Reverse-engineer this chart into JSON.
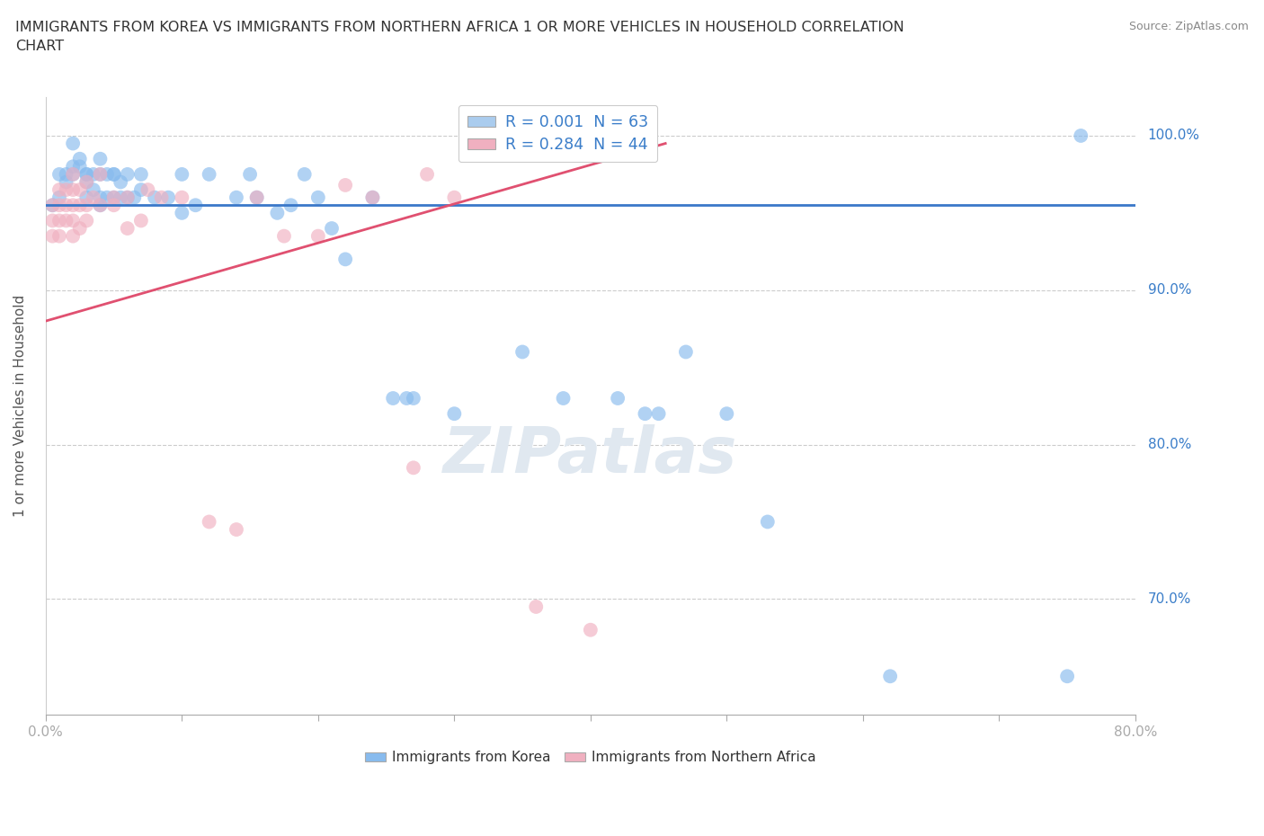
{
  "title": "IMMIGRANTS FROM KOREA VS IMMIGRANTS FROM NORTHERN AFRICA 1 OR MORE VEHICLES IN HOUSEHOLD CORRELATION\nCHART",
  "source_text": "Source: ZipAtlas.com",
  "ylabel": "1 or more Vehicles in Household",
  "ytick_labels": [
    "70.0%",
    "80.0%",
    "90.0%",
    "100.0%"
  ],
  "ytick_values": [
    0.7,
    0.8,
    0.9,
    1.0
  ],
  "xtick_positions": [
    0.0,
    0.1,
    0.2,
    0.3,
    0.4,
    0.5,
    0.6,
    0.7,
    0.8
  ],
  "xlim": [
    0.0,
    0.8
  ],
  "ylim": [
    0.625,
    1.025
  ],
  "legend_entries": [
    {
      "label": "R = 0.001  N = 63",
      "color": "#aaccee"
    },
    {
      "label": "R = 0.284  N = 44",
      "color": "#f0b0c0"
    }
  ],
  "korea_scatter_color": "#88bbee",
  "africa_scatter_color": "#f0b0c0",
  "korea_line_color": "#3a78c9",
  "africa_line_color": "#e05070",
  "watermark": "ZIPatlas",
  "korea_R": 0.001,
  "africa_R": 0.284,
  "korea_x": [
    0.005,
    0.01,
    0.01,
    0.015,
    0.015,
    0.02,
    0.02,
    0.02,
    0.025,
    0.025,
    0.03,
    0.03,
    0.03,
    0.03,
    0.035,
    0.035,
    0.04,
    0.04,
    0.04,
    0.04,
    0.045,
    0.045,
    0.05,
    0.05,
    0.05,
    0.055,
    0.055,
    0.06,
    0.06,
    0.065,
    0.07,
    0.07,
    0.08,
    0.09,
    0.1,
    0.1,
    0.11,
    0.12,
    0.14,
    0.15,
    0.155,
    0.17,
    0.18,
    0.19,
    0.2,
    0.21,
    0.22,
    0.24,
    0.255,
    0.265,
    0.27,
    0.3,
    0.35,
    0.38,
    0.42,
    0.44,
    0.45,
    0.47,
    0.5,
    0.53,
    0.62,
    0.75,
    0.76
  ],
  "korea_y": [
    0.955,
    0.96,
    0.975,
    0.97,
    0.975,
    0.975,
    0.98,
    0.995,
    0.985,
    0.98,
    0.975,
    0.975,
    0.97,
    0.96,
    0.975,
    0.965,
    0.985,
    0.975,
    0.96,
    0.955,
    0.975,
    0.96,
    0.975,
    0.975,
    0.96,
    0.97,
    0.96,
    0.975,
    0.96,
    0.96,
    0.975,
    0.965,
    0.96,
    0.96,
    0.95,
    0.975,
    0.955,
    0.975,
    0.96,
    0.975,
    0.96,
    0.95,
    0.955,
    0.975,
    0.96,
    0.94,
    0.92,
    0.96,
    0.83,
    0.83,
    0.83,
    0.82,
    0.86,
    0.83,
    0.83,
    0.82,
    0.82,
    0.86,
    0.82,
    0.75,
    0.65,
    0.65,
    1.0
  ],
  "africa_x": [
    0.005,
    0.005,
    0.005,
    0.01,
    0.01,
    0.01,
    0.01,
    0.015,
    0.015,
    0.015,
    0.02,
    0.02,
    0.02,
    0.02,
    0.02,
    0.025,
    0.025,
    0.025,
    0.03,
    0.03,
    0.03,
    0.035,
    0.04,
    0.04,
    0.05,
    0.05,
    0.06,
    0.06,
    0.07,
    0.075,
    0.085,
    0.1,
    0.12,
    0.14,
    0.155,
    0.175,
    0.2,
    0.22,
    0.24,
    0.27,
    0.28,
    0.3,
    0.36,
    0.4
  ],
  "africa_y": [
    0.955,
    0.945,
    0.935,
    0.965,
    0.955,
    0.945,
    0.935,
    0.965,
    0.955,
    0.945,
    0.975,
    0.965,
    0.955,
    0.945,
    0.935,
    0.965,
    0.955,
    0.94,
    0.97,
    0.955,
    0.945,
    0.96,
    0.975,
    0.955,
    0.96,
    0.955,
    0.96,
    0.94,
    0.945,
    0.965,
    0.96,
    0.96,
    0.75,
    0.745,
    0.96,
    0.935,
    0.935,
    0.968,
    0.96,
    0.785,
    0.975,
    0.96,
    0.695,
    0.68
  ],
  "korea_line_x0": 0.0,
  "korea_line_x1": 0.8,
  "korea_line_y0": 0.955,
  "korea_line_y1": 0.955,
  "africa_line_x0": 0.0,
  "africa_line_x1": 0.455,
  "africa_line_y0": 0.88,
  "africa_line_y1": 0.995
}
